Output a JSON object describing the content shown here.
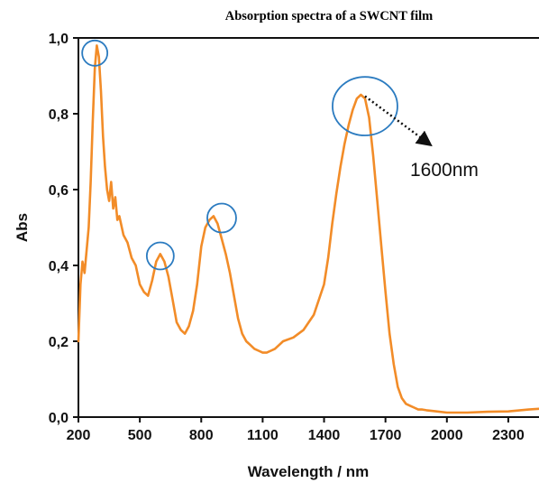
{
  "chart_data": {
    "type": "line",
    "title": "Absorption spectra of a SWCNT film",
    "xlabel": "Wavelength / nm",
    "ylabel": "Abs",
    "xlim": [
      200,
      2450
    ],
    "ylim": [
      0,
      1.0
    ],
    "x_ticks": [
      200,
      500,
      800,
      1100,
      1400,
      1700,
      2000,
      2300
    ],
    "x_tick_labels": [
      "200",
      "500",
      "800",
      "1100",
      "1400",
      "1700",
      "2000",
      "2300"
    ],
    "y_ticks": [
      0,
      0.2,
      0.4,
      0.6,
      0.8,
      1.0
    ],
    "y_tick_labels": [
      "0,0",
      "0,2",
      "0,4",
      "0,6",
      "0,8",
      "1,0"
    ],
    "grid": false,
    "series": [
      {
        "color": "#F28C28",
        "x": [
          200,
          210,
          220,
          230,
          240,
          250,
          260,
          270,
          280,
          290,
          300,
          310,
          320,
          330,
          340,
          350,
          360,
          370,
          380,
          390,
          400,
          420,
          440,
          460,
          480,
          500,
          520,
          540,
          560,
          580,
          600,
          620,
          640,
          660,
          680,
          700,
          720,
          740,
          760,
          780,
          800,
          820,
          840,
          860,
          880,
          900,
          920,
          940,
          960,
          980,
          1000,
          1020,
          1040,
          1060,
          1080,
          1100,
          1120,
          1140,
          1160,
          1180,
          1200,
          1250,
          1300,
          1350,
          1400,
          1420,
          1440,
          1460,
          1480,
          1500,
          1520,
          1540,
          1560,
          1580,
          1600,
          1620,
          1640,
          1660,
          1680,
          1700,
          1720,
          1740,
          1760,
          1780,
          1800,
          1820,
          1840,
          1860,
          1880,
          1900,
          1950,
          2000,
          2100,
          2200,
          2300,
          2400,
          2450
        ],
        "y": [
          0.2,
          0.35,
          0.41,
          0.38,
          0.44,
          0.5,
          0.62,
          0.78,
          0.92,
          0.98,
          0.95,
          0.86,
          0.74,
          0.66,
          0.6,
          0.57,
          0.62,
          0.55,
          0.58,
          0.52,
          0.53,
          0.48,
          0.46,
          0.42,
          0.4,
          0.35,
          0.33,
          0.32,
          0.36,
          0.41,
          0.43,
          0.41,
          0.37,
          0.31,
          0.25,
          0.23,
          0.22,
          0.24,
          0.28,
          0.35,
          0.45,
          0.5,
          0.52,
          0.53,
          0.51,
          0.47,
          0.43,
          0.38,
          0.32,
          0.26,
          0.22,
          0.2,
          0.19,
          0.18,
          0.175,
          0.17,
          0.17,
          0.175,
          0.18,
          0.19,
          0.2,
          0.21,
          0.23,
          0.27,
          0.35,
          0.42,
          0.51,
          0.59,
          0.66,
          0.72,
          0.77,
          0.81,
          0.84,
          0.85,
          0.84,
          0.79,
          0.69,
          0.57,
          0.45,
          0.33,
          0.22,
          0.14,
          0.08,
          0.05,
          0.035,
          0.03,
          0.025,
          0.02,
          0.02,
          0.018,
          0.015,
          0.012,
          0.012,
          0.014,
          0.015,
          0.02,
          0.022
        ]
      }
    ],
    "highlight_circles": [
      {
        "x": 280,
        "y": 0.96,
        "color": "#2B7BC0"
      },
      {
        "x": 600,
        "y": 0.425,
        "color": "#2B7BC0"
      },
      {
        "x": 900,
        "y": 0.525,
        "color": "#2B7BC0"
      },
      {
        "x": 1600,
        "y": 0.82,
        "color": "#2B7BC0"
      }
    ],
    "annotations": [
      {
        "text": "1600nm",
        "arrow_from_x": 1600,
        "arrow_from_y": 0.82,
        "color": "#111111"
      }
    ]
  }
}
